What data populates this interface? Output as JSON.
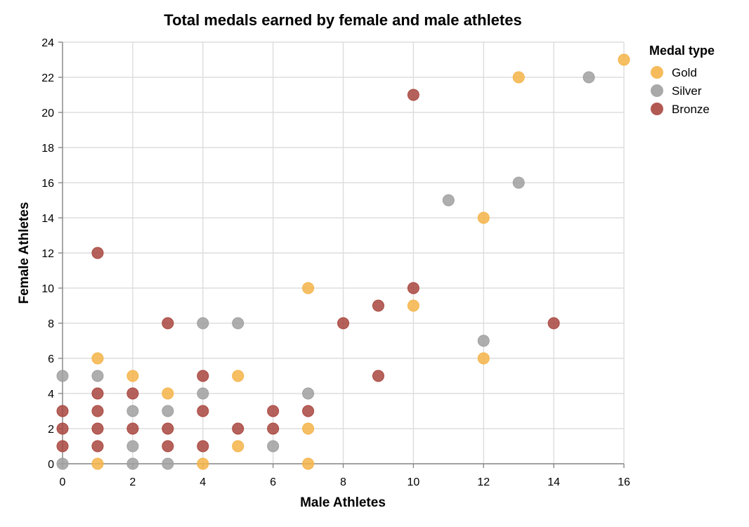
{
  "chart_data": {
    "type": "scatter",
    "title": "Total medals earned by female and male athletes",
    "xlabel": "Male Athletes",
    "ylabel": "Female Athletes",
    "xlim": [
      0,
      16
    ],
    "ylim": [
      0,
      24
    ],
    "xticks": [
      0,
      2,
      4,
      6,
      8,
      10,
      12,
      14,
      16
    ],
    "yticks": [
      0,
      2,
      4,
      6,
      8,
      10,
      12,
      14,
      16,
      18,
      20,
      22,
      24
    ],
    "grid": true,
    "legend": {
      "title": "Medal type",
      "placement": "top-right"
    },
    "series": [
      {
        "name": "Gold",
        "color": "#f5b449",
        "points": [
          [
            16,
            23
          ],
          [
            13,
            22
          ],
          [
            12,
            14
          ],
          [
            7,
            10
          ],
          [
            10,
            9
          ],
          [
            12,
            6
          ],
          [
            1,
            6
          ],
          [
            2,
            5
          ],
          [
            5,
            5
          ],
          [
            3,
            4
          ],
          [
            7,
            2
          ],
          [
            5,
            1
          ],
          [
            1,
            0
          ],
          [
            4,
            0
          ],
          [
            7,
            0
          ]
        ]
      },
      {
        "name": "Silver",
        "color": "#a0a0a0",
        "points": [
          [
            15,
            22
          ],
          [
            13,
            16
          ],
          [
            11,
            15
          ],
          [
            4,
            8
          ],
          [
            5,
            8
          ],
          [
            12,
            7
          ],
          [
            0,
            5
          ],
          [
            1,
            5
          ],
          [
            4,
            4
          ],
          [
            7,
            4
          ],
          [
            2,
            3
          ],
          [
            3,
            3
          ],
          [
            6,
            1
          ],
          [
            2,
            1
          ],
          [
            3,
            0
          ],
          [
            0,
            0
          ],
          [
            2,
            0
          ]
        ]
      },
      {
        "name": "Bronze",
        "color": "#a9473f",
        "points": [
          [
            10,
            21
          ],
          [
            1,
            12
          ],
          [
            10,
            10
          ],
          [
            9,
            9
          ],
          [
            3,
            8
          ],
          [
            8,
            8
          ],
          [
            14,
            8
          ],
          [
            9,
            5
          ],
          [
            4,
            5
          ],
          [
            1,
            4
          ],
          [
            2,
            4
          ],
          [
            0,
            3
          ],
          [
            1,
            3
          ],
          [
            4,
            3
          ],
          [
            6,
            3
          ],
          [
            7,
            3
          ],
          [
            0,
            2
          ],
          [
            1,
            2
          ],
          [
            2,
            2
          ],
          [
            3,
            2
          ],
          [
            5,
            2
          ],
          [
            6,
            2
          ],
          [
            0,
            1
          ],
          [
            1,
            1
          ],
          [
            3,
            1
          ],
          [
            4,
            1
          ]
        ]
      }
    ]
  }
}
